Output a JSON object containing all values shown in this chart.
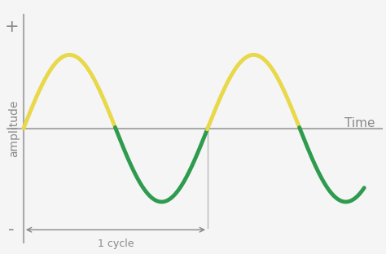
{
  "background_color": "#f5f5f5",
  "sine_amplitude": 1.0,
  "period": 2.0,
  "x_start": 0.0,
  "x_end": 3.7,
  "y_lim": [
    -1.6,
    1.7
  ],
  "x_lim": [
    -0.18,
    3.9
  ],
  "axis_color": "#aaaaaa",
  "positive_color": "#e8d84a",
  "negative_color": "#2e9b4e",
  "linewidth": 3.5,
  "ylabel": "amplitude",
  "xlabel_text": "Time",
  "plus_label": "+",
  "minus_label": "-",
  "cycle_label": "1 cycle",
  "cycle_start_x": 0.0,
  "cycle_end_x": 2.0,
  "vline1_x": 0.0,
  "vline2_x": 2.0,
  "font_color": "#888888",
  "font_size_label": 10,
  "font_size_plusminus": 15,
  "font_size_time": 11,
  "font_size_cycle": 9,
  "n_points": 800
}
